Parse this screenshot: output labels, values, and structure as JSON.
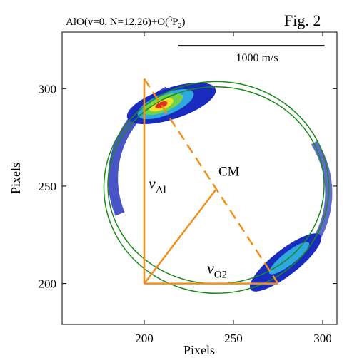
{
  "chart_data": {
    "type": "image",
    "title_parts": [
      "AlO(v=0, N=12,26)+O(",
      "3",
      "P",
      "2",
      ")"
    ],
    "figure_label": "Fig. 2",
    "xlabel": "Pixels",
    "ylabel": "Pixels",
    "xlim": [
      154,
      308
    ],
    "ylim": [
      179,
      329
    ],
    "xticks": [
      200,
      250,
      300
    ],
    "yticks": [
      200,
      250,
      300
    ],
    "rings": [
      {
        "color": "#1a8a1a",
        "cx": 240.4,
        "cy": 249.3,
        "rx": 63,
        "ry": 54.3
      },
      {
        "color": "#1a8a1a",
        "cx": 240.2,
        "cy": 250.4,
        "rx": 60.6,
        "ry": 50.5
      }
    ],
    "vectors_color": "#f0901a",
    "vertex_top": [
      200,
      305
    ],
    "vertex_corner": [
      200,
      200
    ],
    "vertex_right": [
      275,
      200
    ],
    "cm_point": [
      240,
      248
    ],
    "cm_label": "CM",
    "v_al_parts": [
      "v",
      "Al"
    ],
    "v_o2_parts": [
      "v",
      "O2"
    ],
    "scale_bar": {
      "x": [
        219,
        301
      ],
      "y": 322,
      "label": "1000 m/s"
    }
  }
}
